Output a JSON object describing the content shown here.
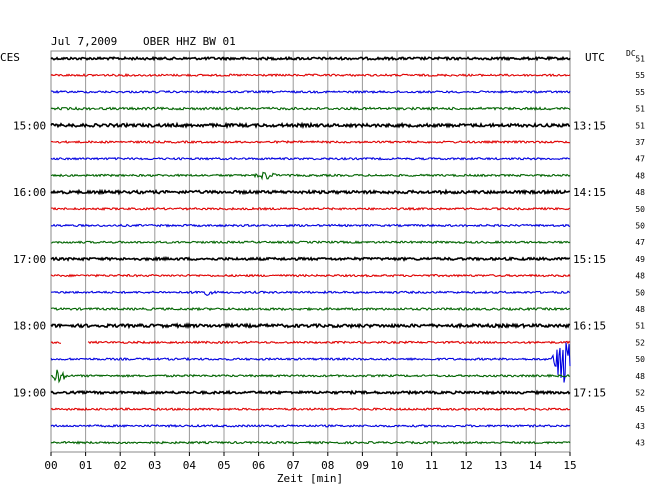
{
  "header": {
    "date": "Jul 7,2009",
    "station": "OBER HHZ BW 01",
    "left_tz": "CES",
    "right_tz": "UTC",
    "dc_label": "DC"
  },
  "chart_data": {
    "type": "line",
    "title": "Jul 7,2009  OBER HHZ BW 01",
    "xlabel": "Zeit [min]",
    "x_ticks": [
      "00",
      "01",
      "02",
      "03",
      "04",
      "05",
      "06",
      "07",
      "08",
      "09",
      "10",
      "11",
      "12",
      "13",
      "14",
      "15"
    ],
    "xlim": [
      0,
      15
    ],
    "grid": true,
    "rows_per_hour": 4,
    "trace_colors": [
      "#000000",
      "#e00000",
      "#0000e0",
      "#006400"
    ],
    "left_hour_labels": [
      {
        "row": 4,
        "label": "15:00"
      },
      {
        "row": 8,
        "label": "16:00"
      },
      {
        "row": 12,
        "label": "17:00"
      },
      {
        "row": 16,
        "label": "18:00"
      },
      {
        "row": 20,
        "label": "19:00"
      }
    ],
    "right_hour_labels": [
      {
        "row": 4,
        "label": "13:15"
      },
      {
        "row": 8,
        "label": "14:15"
      },
      {
        "row": 12,
        "label": "15:15"
      },
      {
        "row": 16,
        "label": "16:15"
      },
      {
        "row": 20,
        "label": "17:15"
      }
    ],
    "dc_values": [
      51,
      55,
      55,
      51,
      51,
      37,
      47,
      48,
      48,
      50,
      50,
      47,
      49,
      48,
      50,
      48,
      51,
      52,
      50,
      48,
      52,
      45,
      43,
      43
    ],
    "trace_amplitude": [
      1.2,
      1.0,
      1.0,
      1.2,
      1.5,
      1.0,
      1.0,
      1.0,
      1.4,
      1.0,
      1.0,
      1.0,
      1.2,
      1.0,
      1.0,
      1.1,
      1.5,
      1.0,
      1.0,
      1.0,
      1.2,
      1.0,
      1.0,
      1.0
    ],
    "events": [
      {
        "row": 17,
        "type": "gap",
        "x_start": 0.3,
        "x_end": 1.05
      },
      {
        "row": 18,
        "type": "burst",
        "x": 14.8,
        "amplitude": 28
      },
      {
        "row": 19,
        "type": "burst",
        "x": 0.2,
        "amplitude": 6
      },
      {
        "row": 7,
        "type": "burst",
        "x": 6.2,
        "amplitude": 4
      },
      {
        "row": 14,
        "type": "burst",
        "x": 4.4,
        "amplitude": 3
      }
    ]
  }
}
